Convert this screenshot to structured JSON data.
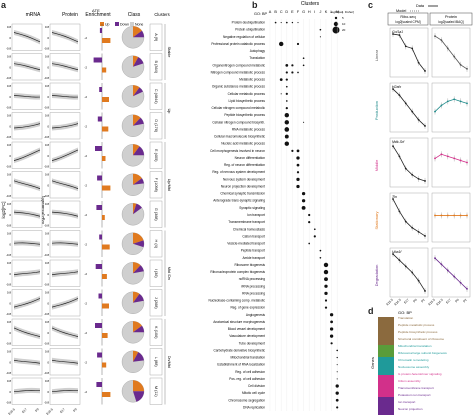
{
  "panels": {
    "a": "a",
    "b": "b",
    "c": "c",
    "d": "d"
  },
  "panel_a": {
    "col_mrna": "mRNA",
    "col_protein": "Protein",
    "col_enrichment": "Enrichment",
    "col_class": "Class",
    "col_clusters": "Clusters",
    "y_axis": "log2[FC]",
    "y_axis2": "log2[estimate]",
    "legend_title": "ΔTE",
    "legend_up": "Up",
    "legend_down": "Down",
    "legend_none": "None",
    "x_ticks": [
      "E15.5",
      "E17",
      "P0"
    ],
    "tick_labels": [
      "0.8",
      "0",
      "-0.8"
    ],
    "clusters": [
      "A (9)",
      "B (364)",
      "C (4844)",
      "D (176)",
      "E (405)",
      "F (1098)",
      "G (368)",
      "H (4)",
      "I (36)",
      "J (268)",
      "K (106)",
      "L (88)",
      "M (11)"
    ],
    "enrichment_values": [
      {
        "up": 0.6,
        "down": 0.15
      },
      {
        "up": 0.3,
        "down": 0.6
      },
      {
        "up": 0.5,
        "down": 0.2
      },
      {
        "up": 0.45,
        "down": 0.3
      },
      {
        "up": 0.25,
        "down": 0.5
      },
      {
        "up": 0.6,
        "down": 0.35
      },
      {
        "up": 0.2,
        "down": 0.4
      },
      {
        "up": 0.55,
        "down": 0.2
      },
      {
        "up": 0.35,
        "down": 0.45
      },
      {
        "up": 0.5,
        "down": 0.25
      },
      {
        "up": 0.4,
        "down": 0.5
      },
      {
        "up": 0.3,
        "down": 0.35
      },
      {
        "up": 0.6,
        "down": 0.4
      }
    ],
    "class_fractions": [
      {
        "up": 0.15,
        "down": 0.1
      },
      {
        "up": 0.08,
        "down": 0.12
      },
      {
        "up": 0.1,
        "down": 0.08
      },
      {
        "up": 0.12,
        "down": 0.1
      },
      {
        "up": 0.1,
        "down": 0.15
      },
      {
        "up": 0.15,
        "down": 0.08
      },
      {
        "up": 0.05,
        "down": 0.1
      },
      {
        "up": 0.2,
        "down": 0.1
      },
      {
        "up": 0.12,
        "down": 0.1
      },
      {
        "up": 0.1,
        "down": 0.12
      },
      {
        "up": 0.15,
        "down": 0.1
      },
      {
        "up": 0.08,
        "down": 0.15
      },
      {
        "up": 0.25,
        "down": 0.2
      }
    ],
    "colors": {
      "up": "#e07a1f",
      "down": "#6a2a8e",
      "none": "#cfcfcf"
    },
    "cluster_groups": [
      "Stable",
      "Up",
      "Up/Mid",
      "Mid /Dn",
      "Dn/Mid"
    ]
  },
  "panel_b": {
    "title": "Clusters",
    "go_label": "GO: BP",
    "legend_title": "-log10[adj. Fisher]",
    "legend_sizes": [
      "5",
      "10",
      "20"
    ],
    "columns": [
      "A",
      "B",
      "C",
      "D",
      "E",
      "F",
      "G",
      "H",
      "I",
      "J",
      "K",
      "L",
      "M"
    ],
    "terms": [
      "Protein deubiquitination",
      "Protein ubiquitination",
      "Negative regulation of cellular",
      "Professional protein catabolic process",
      "Autophagy",
      "Translation",
      "Organonitrogen compound metabolic",
      "Nitrogen compound metabolic process",
      "Metabolic process",
      "Organic substance metabolic process",
      "Cellular metabolic process",
      "Lipid biosynthetic process",
      "Cellular nitrogen compound metabolic",
      "Peptide biosynthetic process",
      "Cellular nitrogen compound biosynth.",
      "RNA metabolic process",
      "Cellular macromolecule biosynthetic",
      "Nucleic acid metabolic process",
      "Cell morphogenesis involved in neuron",
      "Neuron differentiation",
      "Reg. of neuron differentiation",
      "Reg. of nervous system development",
      "Nervous system development",
      "Neuron projection development",
      "Chemical synaptic transmission",
      "Anterograde trans-synaptic signaling",
      "Synaptic signaling",
      "Ion transport",
      "Transmembrane transport",
      "Chemical homeostasis",
      "Cation transport",
      "Vesicle-mediated transport",
      "Peptide transport",
      "Amide transport",
      "Ribosome biogenesis",
      "Ribonucleoprotein complex biogenesis",
      "ncRNA processing",
      "rRNA processing",
      "RNA processing",
      "Nucleobase-containing comp. metabolic",
      "Reg. of gene expression",
      "Angiogenesis",
      "Anatomical structure morphogenesis",
      "Blood vessel development",
      "Vasculature development",
      "Tube development",
      "Carbohydrate derivative biosynthetic",
      "Mitochondrial translation",
      "Establishment of RNA localization",
      "Reg. of cell adhesion",
      "Pos. reg. of cell adhesion",
      "Cell division",
      "Mitotic cell cycle",
      "Chromosome segregation",
      "DNA replication"
    ],
    "dots": [
      [
        0,
        1,
        1.5
      ],
      [
        0,
        2,
        1
      ],
      [
        0,
        3,
        1.5
      ],
      [
        0,
        4,
        1.2
      ],
      [
        0,
        5,
        1
      ],
      [
        1,
        9,
        1.5
      ],
      [
        2,
        9,
        1
      ],
      [
        5,
        6,
        1.5
      ],
      [
        3,
        2,
        4
      ],
      [
        3,
        5,
        2
      ],
      [
        6,
        3,
        2.5
      ],
      [
        6,
        4,
        2
      ],
      [
        6,
        6,
        1.5
      ],
      [
        7,
        3,
        2
      ],
      [
        7,
        4,
        2
      ],
      [
        7,
        5,
        1.5
      ],
      [
        8,
        2,
        2.5
      ],
      [
        8,
        3,
        2
      ],
      [
        9,
        3,
        1.5
      ],
      [
        10,
        3,
        2
      ],
      [
        11,
        3,
        1.5
      ],
      [
        12,
        3,
        2
      ],
      [
        13,
        3,
        4
      ],
      [
        14,
        3,
        4
      ],
      [
        15,
        3,
        4.2
      ],
      [
        16,
        3,
        3.5
      ],
      [
        17,
        3,
        4
      ],
      [
        18,
        4,
        2
      ],
      [
        18,
        5,
        2.5
      ],
      [
        19,
        5,
        3
      ],
      [
        20,
        5,
        2.5
      ],
      [
        21,
        5,
        2
      ],
      [
        22,
        5,
        3
      ],
      [
        23,
        5,
        3
      ],
      [
        24,
        6,
        3
      ],
      [
        25,
        6,
        3
      ],
      [
        26,
        6,
        3.5
      ],
      [
        27,
        7,
        2
      ],
      [
        28,
        7,
        2
      ],
      [
        29,
        8,
        1.5
      ],
      [
        30,
        8,
        2
      ],
      [
        31,
        7,
        1.5
      ],
      [
        32,
        9,
        1.5
      ],
      [
        33,
        9,
        1.5
      ],
      [
        34,
        10,
        4
      ],
      [
        35,
        10,
        4
      ],
      [
        36,
        10,
        3.5
      ],
      [
        37,
        10,
        3
      ],
      [
        38,
        10,
        3
      ],
      [
        39,
        10,
        2
      ],
      [
        40,
        10,
        2
      ],
      [
        41,
        11,
        3
      ],
      [
        42,
        11,
        2.5
      ],
      [
        43,
        11,
        3
      ],
      [
        44,
        11,
        3
      ],
      [
        45,
        11,
        2
      ],
      [
        46,
        12,
        1.5
      ],
      [
        47,
        12,
        1.2
      ],
      [
        48,
        12,
        1
      ],
      [
        49,
        12,
        1
      ],
      [
        50,
        12,
        1
      ],
      [
        51,
        12,
        3
      ],
      [
        52,
        12,
        3
      ],
      [
        53,
        12,
        2.5
      ],
      [
        54,
        12,
        2
      ],
      [
        10,
        2,
        1
      ],
      [
        14,
        6,
        1
      ]
    ]
  },
  "panel_c": {
    "legend_title": "Data",
    "legend_model": "Model",
    "col1_title": "Ribo-seq",
    "col1_sub": "log2[scaled CPM]",
    "col2_title": "Protein",
    "col2_sub": "log2[scaled iBAQ]",
    "rows": [
      {
        "gene": "Col1a1",
        "label": "Linear",
        "color": "#555555",
        "ribo": [
          0.9,
          0.85,
          0.3,
          0.2,
          -0.5,
          -0.9
        ],
        "prot": [
          0.8,
          0.6,
          0.2,
          -0.2,
          -0.6,
          -0.8
        ]
      },
      {
        "gene": "H2afx",
        "label": "Production",
        "color": "#1f8a8a",
        "ribo": [
          0.9,
          0.6,
          0.2,
          -0.2,
          -0.6,
          -0.9
        ],
        "prot": [
          -0.2,
          0.1,
          0.3,
          0.4,
          0.3,
          0.2
        ]
      },
      {
        "gene": "Mdk-Srf",
        "label": "Middle",
        "color": "#d2308a",
        "ribo": [
          0.8,
          0.3,
          -0.3,
          -0.6,
          -0.8,
          -0.9
        ],
        "prot": [
          0.2,
          0.4,
          0.3,
          0.2,
          0.1,
          0.0
        ]
      },
      {
        "gene": "Tln",
        "label": "Stationary",
        "color": "#e07a1f",
        "ribo": [
          0.9,
          0.3,
          -0.2,
          -0.5,
          -0.7,
          -0.9
        ],
        "prot": [
          0.1,
          0.1,
          0.1,
          0.1,
          0.1,
          0.1
        ]
      },
      {
        "gene": "Uba1f",
        "label": "Degradation",
        "color": "#6a2a8e",
        "ribo": [
          0.9,
          0.6,
          0.3,
          0.0,
          -0.4,
          -0.9
        ],
        "prot": [
          0.7,
          0.4,
          0.1,
          -0.2,
          -0.5,
          -0.8
        ]
      }
    ],
    "x_ticks": [
      "E15.5",
      "E16.5",
      "E17",
      "P0",
      "P2"
    ]
  },
  "panel_d": {
    "title": "GO: BP",
    "y_label": "Genes",
    "stack_colors": [
      "#8b6a3e",
      "#5a9c3a",
      "#1f9a9a",
      "#d2308a",
      "#6a2a8e"
    ],
    "terms": [
      {
        "text": "Translation",
        "color": "#8b6a3e"
      },
      {
        "text": "Peptide metabolic process",
        "color": "#8b6a3e"
      },
      {
        "text": "Peptide biosynthetic process",
        "color": "#8b6a3e"
      },
      {
        "text": "Structural constituent of ribosome",
        "color": "#8b6a3e"
      },
      {
        "text": "Mitochondrial translation",
        "color": "#1f9a9a"
      },
      {
        "text": "Ribosomal large subunit biogenesis",
        "color": "#1f9a9a"
      },
      {
        "text": "Chromatin remodeling",
        "color": "#1f9a9a"
      },
      {
        "text": "Nucleosome assembly",
        "color": "#1f9a9a"
      },
      {
        "text": "G protein-heterotrimer signaling",
        "color": "#d2308a"
      },
      {
        "text": "Cilium assembly",
        "color": "#d2308a"
      },
      {
        "text": "Transmembrane transport",
        "color": "#6a2a8e"
      },
      {
        "text": "Potassium ion transport",
        "color": "#6a2a8e"
      },
      {
        "text": "Ion transport",
        "color": "#6a2a8e"
      },
      {
        "text": "Neuron projection",
        "color": "#6a2a8e"
      }
    ]
  }
}
